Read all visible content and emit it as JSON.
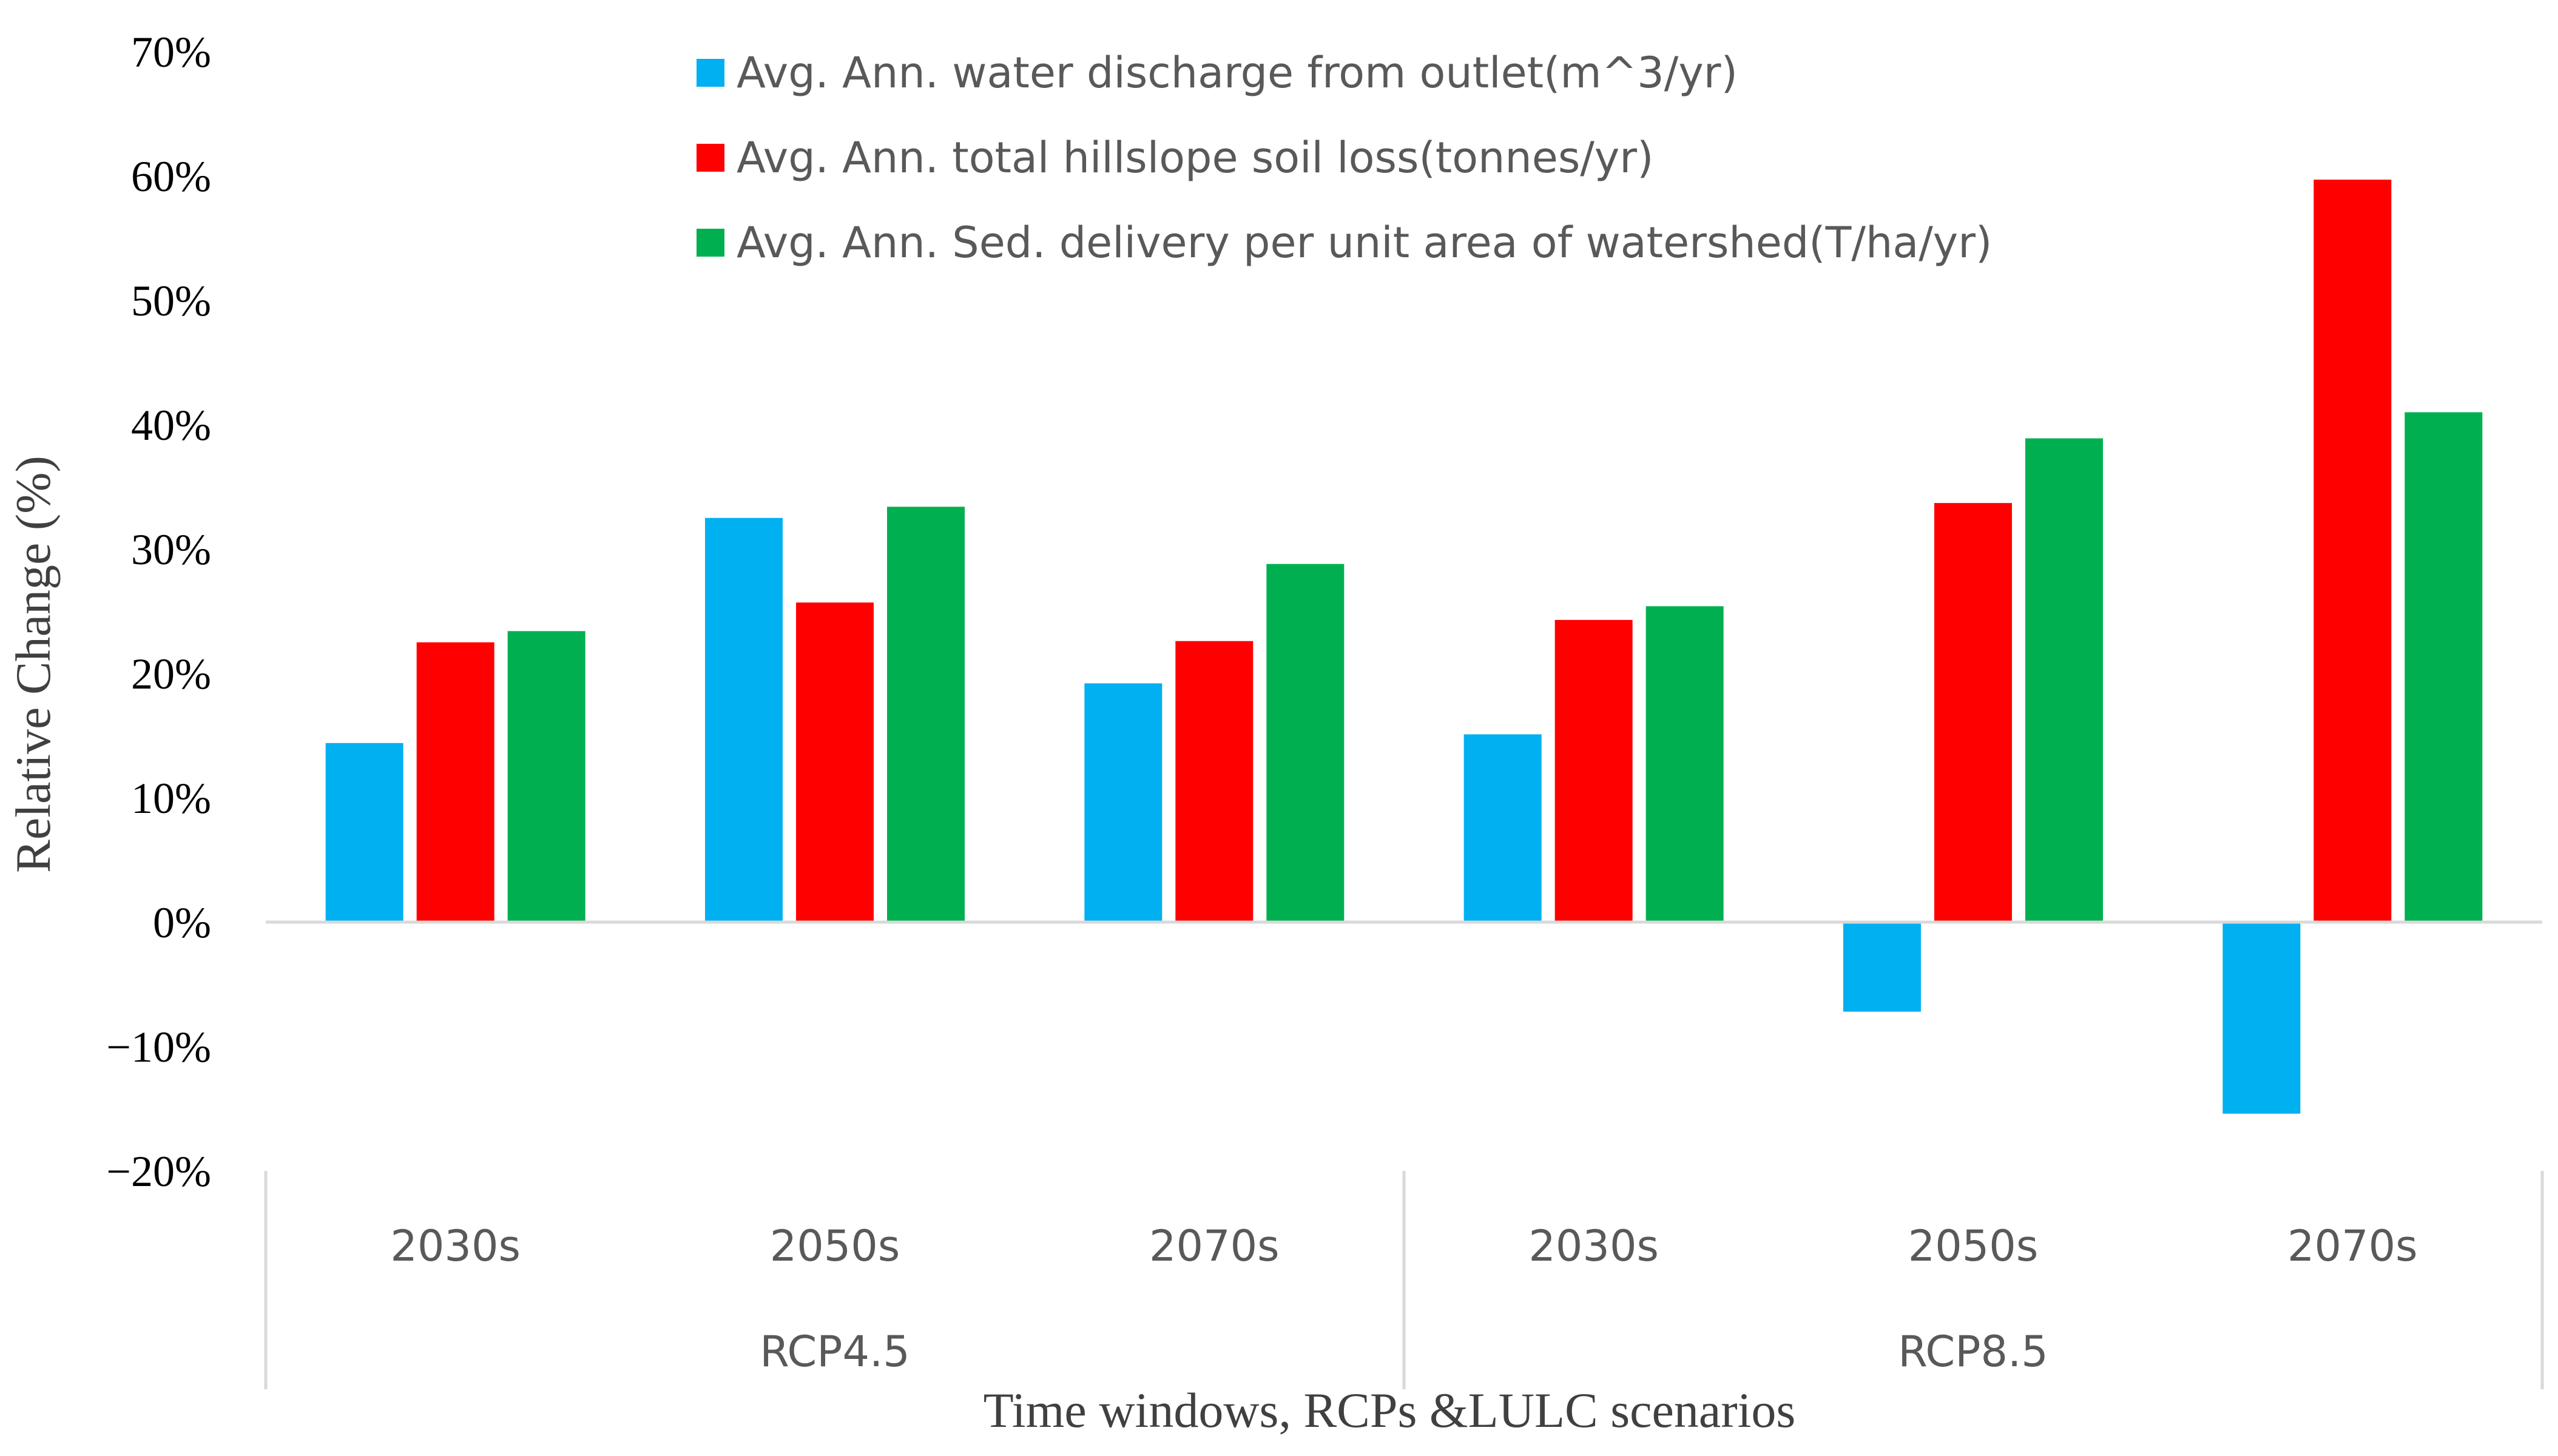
{
  "chart_data": {
    "type": "bar",
    "title": "",
    "ylabel": "Relative Change (%)",
    "xlabel": "Time windows, RCPs &LULC scenarios",
    "ylim": [
      -20,
      70
    ],
    "ytick_step": 10,
    "ytick_labels": [
      "−20%",
      "−10%",
      "0%",
      "10%",
      "20%",
      "30%",
      "40%",
      "50%",
      "60%",
      "70%"
    ],
    "categories": [
      "2030s",
      "2050s",
      "2070s",
      "2030s",
      "2050s",
      "2070s"
    ],
    "groups": [
      {
        "label": "RCP4.5",
        "span": 3
      },
      {
        "label": "RCP8.5",
        "span": 3
      }
    ],
    "series": [
      {
        "name": "Avg. Ann. water discharge from outlet(m^3/yr)",
        "color": "#00b0f0",
        "values": [
          14.4,
          32.5,
          19.2,
          15.1,
          -7.2,
          -15.4
        ]
      },
      {
        "name": "Avg. Ann. total hillslope soil loss(tonnes/yr)",
        "color": "#ff0000",
        "values": [
          22.5,
          25.7,
          22.6,
          24.3,
          33.7,
          59.7
        ]
      },
      {
        "name": "Avg. Ann. Sed. delivery per unit area of watershed(T/ha/yr)",
        "color": "#00b050",
        "values": [
          23.4,
          33.4,
          28.8,
          25.4,
          38.9,
          41.0
        ]
      }
    ],
    "legend_position": "top-center",
    "grid": false
  }
}
